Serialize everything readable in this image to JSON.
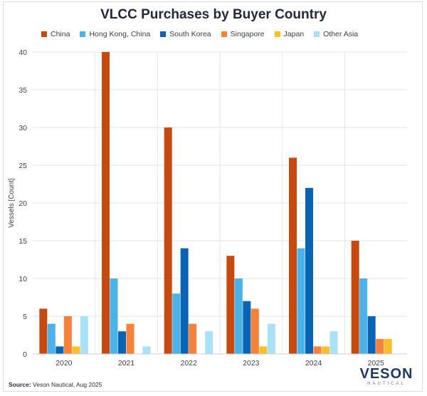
{
  "chart_data": {
    "type": "bar",
    "title": "VLCC Purchases by Buyer Country",
    "xlabel": "",
    "ylabel": "Vessels [Count]",
    "ylim": [
      0,
      40
    ],
    "yticks": [
      0,
      5,
      10,
      15,
      20,
      25,
      30,
      35,
      40
    ],
    "grid": true,
    "legend_position": "top",
    "categories": [
      "2020",
      "2021",
      "2022",
      "2023",
      "2024",
      "2025"
    ],
    "series": [
      {
        "name": "China",
        "color": "#c64a0f",
        "values": [
          6,
          40,
          30,
          13,
          26,
          15
        ]
      },
      {
        "name": "Hong Kong, China",
        "color": "#4bb3e8",
        "values": [
          4,
          10,
          8,
          10,
          14,
          10
        ]
      },
      {
        "name": "South Korea",
        "color": "#0b63b5",
        "values": [
          1,
          3,
          14,
          7,
          22,
          5
        ]
      },
      {
        "name": "Singapore",
        "color": "#f4823a",
        "values": [
          5,
          4,
          4,
          6,
          1,
          2
        ]
      },
      {
        "name": "Japan",
        "color": "#f9be2c",
        "values": [
          1,
          0,
          0,
          1,
          1,
          2
        ]
      },
      {
        "name": "Other Asia",
        "color": "#a9e1f7",
        "values": [
          5,
          1,
          3,
          4,
          3,
          0
        ]
      }
    ]
  },
  "footer": {
    "source_label": "Source:",
    "source_text": "Veson Nautical, Aug 2025"
  },
  "logo": {
    "main": "VESON",
    "sub": "NAUTICAL"
  }
}
